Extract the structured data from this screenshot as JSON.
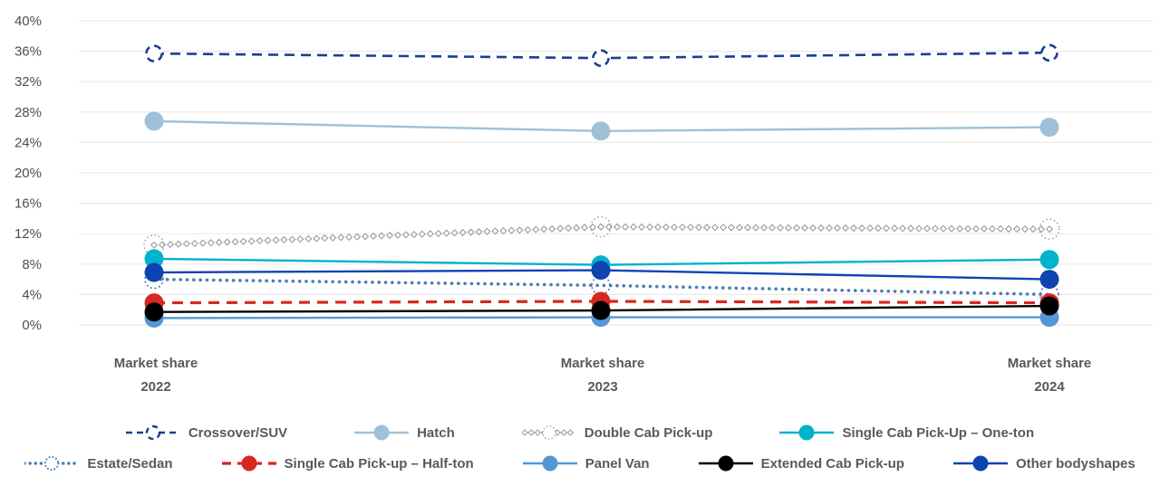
{
  "page": {
    "background": "#ffffff"
  },
  "x_axis": [
    {
      "line1": "Market share",
      "line2": "2022"
    },
    {
      "line1": "Market share",
      "line2": "2023"
    },
    {
      "line1": "Market share",
      "line2": "2024"
    }
  ],
  "chart_data": {
    "type": "line",
    "title": "",
    "x_categories": [
      "Market share 2022",
      "Market share 2023",
      "Market share 2024"
    ],
    "y_ticks": [
      {
        "value": 0,
        "label": "0%"
      },
      {
        "value": 4,
        "label": "4%"
      },
      {
        "value": 8,
        "label": "8%"
      },
      {
        "value": 12,
        "label": "12%"
      },
      {
        "value": 16,
        "label": "16%"
      },
      {
        "value": 20,
        "label": "20%"
      },
      {
        "value": 24,
        "label": "24%"
      },
      {
        "value": 28,
        "label": "28%"
      },
      {
        "value": 32,
        "label": "32%"
      },
      {
        "value": 36,
        "label": "36%"
      },
      {
        "value": 40,
        "label": "40%"
      }
    ],
    "ylim": [
      0,
      40
    ],
    "grid": true,
    "gridline_color": "#ebebeb",
    "axis_label_color": "#4d4d4d",
    "legend_position": "bottom",
    "series": [
      {
        "name": "Crossover/SUV",
        "color": "#1b3f8e",
        "line_style": "dashed",
        "marker": "dashed-circle",
        "values": [
          35.7,
          35.1,
          35.8
        ]
      },
      {
        "name": "Hatch",
        "color": "#9fc1d7",
        "line_style": "solid",
        "marker": "filled-circle",
        "values": [
          26.8,
          25.5,
          26.0
        ]
      },
      {
        "name": "Double Cab Pick-up",
        "color": "#9b9b9b",
        "line_style": "diamond",
        "marker": "dotted-circle",
        "values": [
          10.5,
          12.9,
          12.6
        ]
      },
      {
        "name": "Single Cab Pick-Up – One-ton",
        "color": "#00b2cc",
        "line_style": "solid",
        "marker": "filled-circle",
        "values": [
          8.7,
          7.9,
          8.6
        ]
      },
      {
        "name": "Estate/Sedan",
        "color": "#4d7fb0",
        "line_style": "dotted",
        "marker": "dotted-circle",
        "values": [
          6.0,
          5.2,
          4.0
        ]
      },
      {
        "name": "Single Cab Pick-up – Half-ton",
        "color": "#d8271f",
        "line_style": "dashed",
        "marker": "filled-circle",
        "values": [
          2.9,
          3.1,
          2.9
        ]
      },
      {
        "name": "Panel Van",
        "color": "#5596d6",
        "line_style": "solid",
        "marker": "filled-circle",
        "values": [
          0.9,
          1.0,
          1.0
        ]
      },
      {
        "name": "Extended Cab Pick-up",
        "color": "#000000",
        "line_style": "solid",
        "marker": "filled-circle",
        "values": [
          1.7,
          1.9,
          2.5
        ]
      },
      {
        "name": "Other bodyshapes",
        "color": "#0e43b2",
        "line_style": "solid",
        "marker": "filled-circle",
        "values": [
          6.9,
          7.2,
          6.0
        ]
      }
    ],
    "legend_rows": [
      [
        0,
        1,
        2,
        3
      ],
      [
        4,
        5,
        6,
        7,
        8
      ]
    ],
    "draw_order": [
      1,
      0,
      2,
      4,
      3,
      8,
      6,
      5,
      7
    ]
  }
}
